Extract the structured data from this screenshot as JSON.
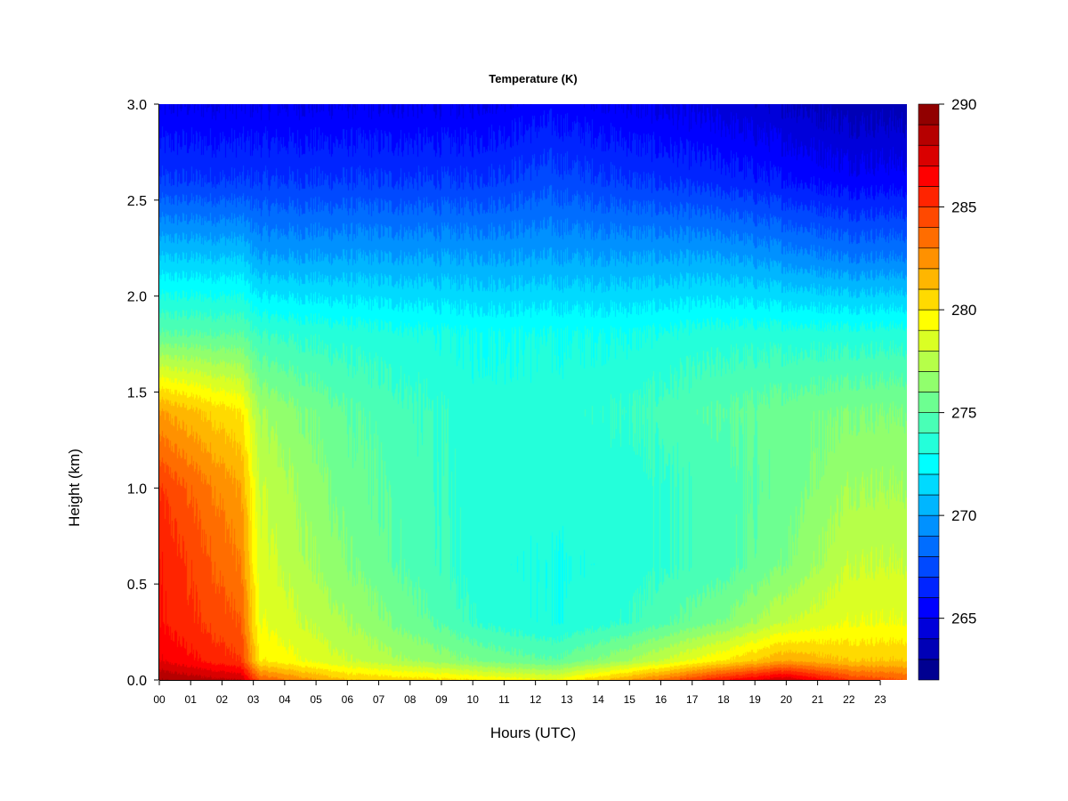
{
  "chart_data": {
    "type": "heatmap",
    "title": "Temperature (K)",
    "xlabel": "Hours (UTC)",
    "ylabel": "Height (km)",
    "x_ticks": [
      "00",
      "01",
      "02",
      "03",
      "04",
      "05",
      "06",
      "07",
      "08",
      "09",
      "10",
      "11",
      "12",
      "13",
      "14",
      "15",
      "16",
      "17",
      "18",
      "19",
      "20",
      "21",
      "22",
      "23"
    ],
    "x_range": [
      0,
      23.85
    ],
    "y_ticks": [
      "0.0",
      "0.5",
      "1.0",
      "1.5",
      "2.0",
      "2.5",
      "3.0"
    ],
    "y_range": [
      0,
      3.0
    ],
    "colorbar": {
      "min": 262,
      "max": 290,
      "levels": 28,
      "ticks": [
        "265",
        "270",
        "275",
        "280",
        "285",
        "290"
      ],
      "colors": [
        "#00007f",
        "#0000ff",
        "#007fff",
        "#00ffff",
        "#7fff7f",
        "#ffff00",
        "#ff7f00",
        "#ff0000",
        "#7f0000"
      ]
    },
    "temperature_profiles": [
      {
        "hour": 0.0,
        "heights": [
          0,
          0.1,
          0.3,
          0.6,
          1.0,
          1.4,
          1.8,
          2.2,
          2.6,
          3.0
        ],
        "temps": [
          289,
          287,
          286,
          286,
          285,
          282,
          275,
          271,
          267,
          265
        ]
      },
      {
        "hour": 2.6,
        "heights": [
          0,
          0.1,
          0.3,
          0.6,
          1.0,
          1.4,
          1.8,
          2.2,
          2.6,
          3.0
        ],
        "temps": [
          288,
          285,
          284,
          283,
          282,
          280,
          275,
          271,
          267,
          265
        ]
      },
      {
        "hour": 3.2,
        "heights": [
          0,
          0.1,
          0.3,
          0.6,
          1.0,
          1.4,
          1.8,
          2.2,
          2.6,
          3.0
        ],
        "temps": [
          284,
          280,
          279,
          278.5,
          278,
          277,
          274,
          270,
          267,
          265
        ]
      },
      {
        "hour": 6.0,
        "heights": [
          0,
          0.1,
          0.3,
          0.6,
          1.0,
          1.4,
          1.8,
          2.2,
          2.6,
          3.0
        ],
        "temps": [
          281,
          278,
          277,
          276,
          275.5,
          275,
          273.5,
          270,
          267,
          265
        ]
      },
      {
        "hour": 10.0,
        "heights": [
          0,
          0.1,
          0.3,
          0.6,
          1.0,
          1.4,
          1.8,
          2.2,
          2.6,
          3.0
        ],
        "temps": [
          280,
          276,
          274,
          273.5,
          273.5,
          273.5,
          273,
          270,
          267,
          265
        ]
      },
      {
        "hour": 12.5,
        "heights": [
          0,
          0.1,
          0.3,
          0.6,
          1.0,
          1.4,
          1.8,
          2.2,
          2.6,
          3.0
        ],
        "temps": [
          279,
          275,
          273,
          273,
          273.5,
          273.5,
          273,
          270,
          267.5,
          265.5
        ]
      },
      {
        "hour": 15.0,
        "heights": [
          0,
          0.1,
          0.3,
          0.6,
          1.0,
          1.4,
          1.8,
          2.2,
          2.6,
          3.0
        ],
        "temps": [
          282,
          277,
          274,
          273.5,
          273.5,
          274,
          273,
          270,
          267,
          265
        ]
      },
      {
        "hour": 18.0,
        "heights": [
          0,
          0.1,
          0.3,
          0.6,
          1.0,
          1.4,
          1.8,
          2.2,
          2.6,
          3.0
        ],
        "temps": [
          286,
          280,
          276,
          274.5,
          274.5,
          275,
          273.5,
          270,
          266.5,
          264.5
        ]
      },
      {
        "hour": 20.0,
        "heights": [
          0,
          0.1,
          0.3,
          0.6,
          1.0,
          1.4,
          1.8,
          2.2,
          2.6,
          3.0
        ],
        "temps": [
          288,
          282,
          278,
          276,
          275.5,
          275.5,
          273.5,
          269.5,
          266,
          264
        ]
      },
      {
        "hour": 22.0,
        "heights": [
          0,
          0.1,
          0.3,
          0.6,
          1.0,
          1.4,
          1.8,
          2.2,
          2.6,
          3.0
        ],
        "temps": [
          285,
          281,
          279,
          278,
          277,
          276,
          273.5,
          269,
          265.5,
          263.5
        ]
      },
      {
        "hour": 23.85,
        "heights": [
          0,
          0.1,
          0.3,
          0.6,
          1.0,
          1.4,
          1.8,
          2.2,
          2.6,
          3.0
        ],
        "temps": [
          284,
          281,
          279,
          278,
          277,
          276,
          273.5,
          269,
          265.5,
          263.5
        ]
      }
    ]
  }
}
